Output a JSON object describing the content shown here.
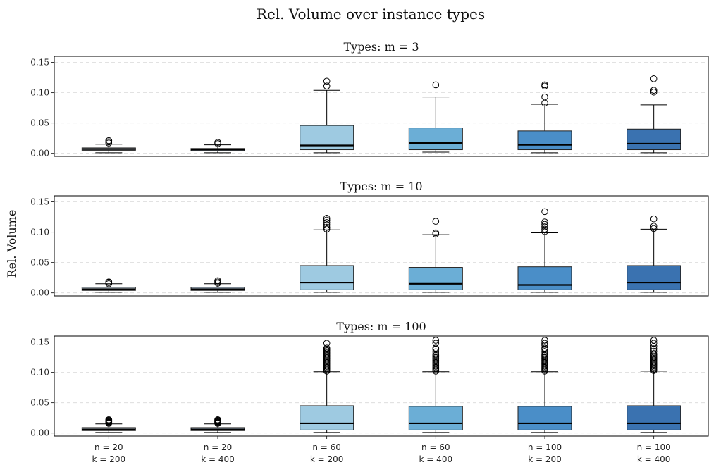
{
  "chart_data": {
    "type": "box",
    "title": "Rel. Volume over instance types",
    "ylabel": "Rel. Volume",
    "ylim": [
      -0.005,
      0.16
    ],
    "yticks": [
      "0.00",
      "0.05",
      "0.10",
      "0.15"
    ],
    "grid": "y-dashed",
    "categories": [
      {
        "n": "n = 20",
        "k": "k = 200"
      },
      {
        "n": "n = 20",
        "k": "k = 400"
      },
      {
        "n": "n = 60",
        "k": "k = 200"
      },
      {
        "n": "n = 60",
        "k": "k = 400"
      },
      {
        "n": "n = 100",
        "k": "k = 200"
      },
      {
        "n": "n = 100",
        "k": "k = 400"
      }
    ],
    "colors": [
      "#deebf7",
      "#c6dbef",
      "#9ecae1",
      "#6baed6",
      "#4a8ec8",
      "#3a72b0"
    ],
    "panels": [
      {
        "title": "Types: m = 3",
        "boxes": [
          {
            "whislo": 0.001,
            "q1": 0.005,
            "med": 0.007,
            "q3": 0.009,
            "whishi": 0.015,
            "fliers": [
              0.017,
              0.019,
              0.021
            ]
          },
          {
            "whislo": 0.001,
            "q1": 0.004,
            "med": 0.006,
            "q3": 0.008,
            "whishi": 0.014,
            "fliers": [
              0.016,
              0.018
            ]
          },
          {
            "whislo": 0.001,
            "q1": 0.006,
            "med": 0.013,
            "q3": 0.046,
            "whishi": 0.104,
            "fliers": [
              0.111,
              0.119
            ]
          },
          {
            "whislo": 0.002,
            "q1": 0.006,
            "med": 0.017,
            "q3": 0.042,
            "whishi": 0.093,
            "fliers": [
              0.113
            ]
          },
          {
            "whislo": 0.001,
            "q1": 0.006,
            "med": 0.014,
            "q3": 0.037,
            "whishi": 0.081,
            "fliers": [
              0.083,
              0.093,
              0.111,
              0.113
            ]
          },
          {
            "whislo": 0.001,
            "q1": 0.006,
            "med": 0.016,
            "q3": 0.04,
            "whishi": 0.08,
            "fliers": [
              0.101,
              0.104,
              0.123
            ]
          }
        ]
      },
      {
        "title": "Types: m = 10",
        "boxes": [
          {
            "whislo": 0.001,
            "q1": 0.004,
            "med": 0.006,
            "q3": 0.009,
            "whishi": 0.015,
            "fliers": [
              0.015,
              0.017,
              0.018
            ]
          },
          {
            "whislo": 0.001,
            "q1": 0.004,
            "med": 0.006,
            "q3": 0.009,
            "whishi": 0.015,
            "fliers": [
              0.016,
              0.018,
              0.02
            ]
          },
          {
            "whislo": 0.001,
            "q1": 0.005,
            "med": 0.017,
            "q3": 0.045,
            "whishi": 0.104,
            "fliers": [
              0.105,
              0.108,
              0.112,
              0.116,
              0.12,
              0.123
            ]
          },
          {
            "whislo": 0.001,
            "q1": 0.005,
            "med": 0.015,
            "q3": 0.042,
            "whishi": 0.096,
            "fliers": [
              0.097,
              0.099,
              0.118
            ]
          },
          {
            "whislo": 0.001,
            "q1": 0.005,
            "med": 0.013,
            "q3": 0.043,
            "whishi": 0.099,
            "fliers": [
              0.101,
              0.105,
              0.109,
              0.113,
              0.117,
              0.134
            ]
          },
          {
            "whislo": 0.001,
            "q1": 0.005,
            "med": 0.017,
            "q3": 0.045,
            "whishi": 0.105,
            "fliers": [
              0.106,
              0.11,
              0.122
            ]
          }
        ]
      },
      {
        "title": "Types: m = 100",
        "boxes": [
          {
            "whislo": 0.001,
            "q1": 0.004,
            "med": 0.006,
            "q3": 0.009,
            "whishi": 0.015,
            "fliers": [
              0.016,
              0.017,
              0.018,
              0.019,
              0.02,
              0.021,
              0.022
            ]
          },
          {
            "whislo": 0.001,
            "q1": 0.004,
            "med": 0.006,
            "q3": 0.009,
            "whishi": 0.015,
            "fliers": [
              0.016,
              0.017,
              0.018,
              0.019,
              0.02,
              0.021,
              0.022
            ]
          },
          {
            "whislo": 0.001,
            "q1": 0.005,
            "med": 0.016,
            "q3": 0.045,
            "whishi": 0.101,
            "fliers": [
              0.102,
              0.104,
              0.106,
              0.108,
              0.11,
              0.112,
              0.114,
              0.116,
              0.118,
              0.12,
              0.122,
              0.124,
              0.126,
              0.128,
              0.13,
              0.132,
              0.134,
              0.136,
              0.138,
              0.14,
              0.148
            ]
          },
          {
            "whislo": 0.001,
            "q1": 0.005,
            "med": 0.016,
            "q3": 0.044,
            "whishi": 0.101,
            "fliers": [
              0.102,
              0.104,
              0.106,
              0.108,
              0.11,
              0.112,
              0.114,
              0.116,
              0.118,
              0.12,
              0.122,
              0.124,
              0.126,
              0.128,
              0.13,
              0.134,
              0.138,
              0.14,
              0.148,
              0.153
            ]
          },
          {
            "whislo": 0.001,
            "q1": 0.005,
            "med": 0.016,
            "q3": 0.044,
            "whishi": 0.101,
            "fliers": [
              0.102,
              0.104,
              0.106,
              0.108,
              0.11,
              0.112,
              0.114,
              0.116,
              0.118,
              0.12,
              0.122,
              0.124,
              0.126,
              0.128,
              0.13,
              0.134,
              0.138,
              0.14,
              0.145,
              0.148,
              0.153
            ]
          },
          {
            "whislo": 0.001,
            "q1": 0.005,
            "med": 0.016,
            "q3": 0.045,
            "whishi": 0.102,
            "fliers": [
              0.103,
              0.105,
              0.107,
              0.109,
              0.111,
              0.113,
              0.115,
              0.117,
              0.119,
              0.121,
              0.123,
              0.125,
              0.127,
              0.129,
              0.131,
              0.135,
              0.139,
              0.143,
              0.148,
              0.153
            ]
          }
        ]
      }
    ]
  }
}
